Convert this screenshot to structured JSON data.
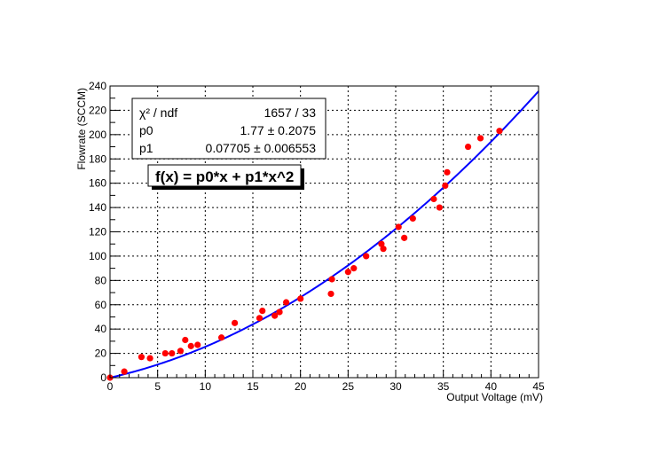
{
  "chart_data": {
    "type": "scatter",
    "title": "",
    "xlabel": "Output Voltage (mV)",
    "ylabel": "Flowrate (SCCM)",
    "xlim": [
      0,
      45
    ],
    "ylim": [
      0,
      240
    ],
    "x_ticks": [
      0,
      5,
      10,
      15,
      20,
      25,
      30,
      35,
      40,
      45
    ],
    "y_ticks": [
      0,
      20,
      40,
      60,
      80,
      100,
      120,
      140,
      160,
      180,
      200,
      220,
      240
    ],
    "grid": true,
    "marker_color": "#ff0000",
    "fit_color": "#0000ff",
    "points": [
      {
        "x": 0.0,
        "y": 0
      },
      {
        "x": 1.5,
        "y": 5
      },
      {
        "x": 3.3,
        "y": 17
      },
      {
        "x": 4.2,
        "y": 16
      },
      {
        "x": 5.8,
        "y": 20
      },
      {
        "x": 6.5,
        "y": 20
      },
      {
        "x": 7.4,
        "y": 22
      },
      {
        "x": 7.9,
        "y": 31
      },
      {
        "x": 8.5,
        "y": 26
      },
      {
        "x": 9.2,
        "y": 27
      },
      {
        "x": 11.7,
        "y": 33
      },
      {
        "x": 13.1,
        "y": 45
      },
      {
        "x": 15.7,
        "y": 49
      },
      {
        "x": 16.0,
        "y": 55
      },
      {
        "x": 17.3,
        "y": 51
      },
      {
        "x": 17.8,
        "y": 54
      },
      {
        "x": 18.5,
        "y": 62
      },
      {
        "x": 20.0,
        "y": 65
      },
      {
        "x": 23.2,
        "y": 69
      },
      {
        "x": 23.3,
        "y": 81
      },
      {
        "x": 25.0,
        "y": 87
      },
      {
        "x": 25.6,
        "y": 90
      },
      {
        "x": 26.9,
        "y": 100
      },
      {
        "x": 28.5,
        "y": 110
      },
      {
        "x": 28.7,
        "y": 106
      },
      {
        "x": 30.3,
        "y": 124
      },
      {
        "x": 30.9,
        "y": 115
      },
      {
        "x": 31.8,
        "y": 131
      },
      {
        "x": 34.0,
        "y": 147
      },
      {
        "x": 34.6,
        "y": 140
      },
      {
        "x": 35.2,
        "y": 158
      },
      {
        "x": 35.4,
        "y": 169
      },
      {
        "x": 37.6,
        "y": 190
      },
      {
        "x": 38.9,
        "y": 197
      },
      {
        "x": 40.9,
        "y": 203
      }
    ],
    "fit": {
      "formula": "f(x) = p0*x + p1*x^2",
      "p0": 1.77,
      "p1": 0.07705
    },
    "stats": {
      "chi2_ndf_label": "χ² / ndf",
      "chi2_ndf_value": "1657 / 33",
      "p0_label": "p0",
      "p0_value": "1.77 ± 0.2075",
      "p1_label": "p1",
      "p1_value": "0.07705 ± 0.006553"
    }
  }
}
